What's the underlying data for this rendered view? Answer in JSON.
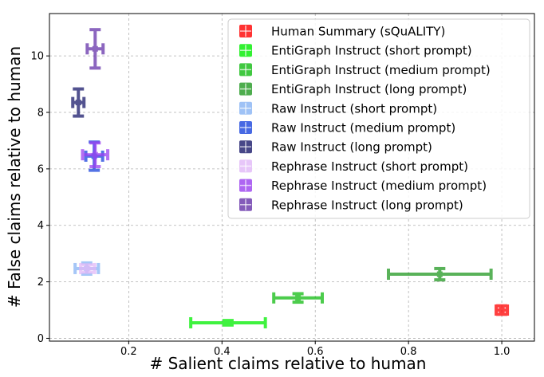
{
  "chart_data": {
    "type": "scatter",
    "title": "",
    "xlabel": "# Salient claims relative to human",
    "ylabel": "# False claims relative to human",
    "xlim": [
      0.03,
      1.07
    ],
    "ylim": [
      -0.1,
      11.5
    ],
    "xticks": [
      0.2,
      0.4,
      0.6,
      0.8,
      1.0
    ],
    "xtick_labels": [
      "0.2",
      "0.4",
      "0.6",
      "0.8",
      "1.0"
    ],
    "yticks": [
      0,
      2,
      4,
      6,
      8,
      10
    ],
    "ytick_labels": [
      "0",
      "2",
      "4",
      "6",
      "8",
      "10"
    ],
    "grid": true,
    "legend_position": "upper-right",
    "series": [
      {
        "name": "Human Summary (sQuALITY)",
        "color": "#ff0000",
        "x": 1.0,
        "y": 1.0,
        "xerr": 0.012,
        "yerr": 0.15
      },
      {
        "name": "EntiGraph Instruct (short prompt)",
        "color": "#00ee00",
        "x": 0.413,
        "y": 0.55,
        "xerr": 0.08,
        "yerr": 0.08
      },
      {
        "name": "EntiGraph Instruct (medium prompt)",
        "color": "#11bb11",
        "x": 0.563,
        "y": 1.43,
        "xerr": 0.052,
        "yerr": 0.15
      },
      {
        "name": "EntiGraph Instruct (long prompt)",
        "color": "#229922",
        "x": 0.867,
        "y": 2.27,
        "xerr": 0.11,
        "yerr": 0.2
      },
      {
        "name": "Raw Instruct (short prompt)",
        "color": "#88b4f5",
        "x": 0.11,
        "y": 2.47,
        "xerr": 0.025,
        "yerr": 0.2
      },
      {
        "name": "Raw Instruct (medium prompt)",
        "color": "#1a44dd",
        "x": 0.126,
        "y": 6.45,
        "xerr": 0.018,
        "yerr": 0.5
      },
      {
        "name": "Raw Instruct (long prompt)",
        "color": "#1a1a6b",
        "x": 0.092,
        "y": 8.35,
        "xerr": 0.012,
        "yerr": 0.48
      },
      {
        "name": "Rephrase Instruct (short prompt)",
        "color": "#e2b8f8",
        "x": 0.112,
        "y": 2.47,
        "xerr": 0.015,
        "yerr": 0.13
      },
      {
        "name": "Rephrase Instruct (medium prompt)",
        "color": "#9a40f0",
        "x": 0.128,
        "y": 6.5,
        "xerr": 0.027,
        "yerr": 0.42
      },
      {
        "name": "Rephrase Instruct (long prompt)",
        "color": "#6633aa",
        "x": 0.128,
        "y": 10.25,
        "xerr": 0.017,
        "yerr": 0.68
      }
    ]
  }
}
